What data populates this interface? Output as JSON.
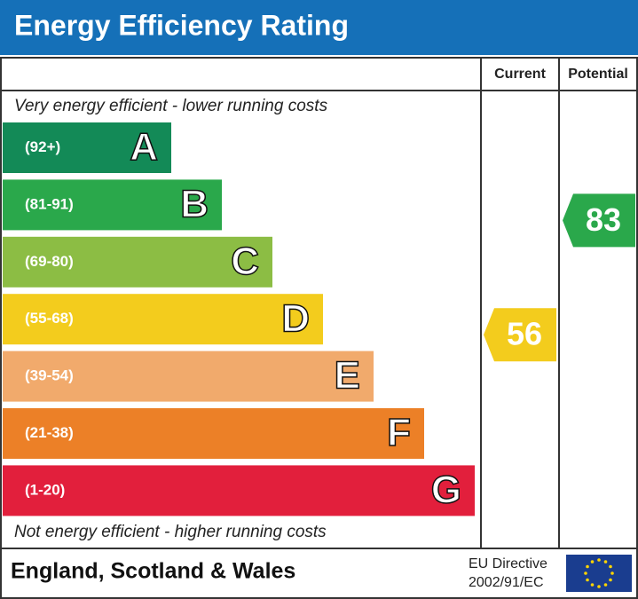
{
  "header": {
    "title": "Energy Efficiency Rating"
  },
  "columns": {
    "current": "Current",
    "potential": "Potential"
  },
  "top_note": "Very energy efficient - lower running costs",
  "bottom_note": "Not energy efficient - higher running costs",
  "bands": [
    {
      "range": "(92+)",
      "letter": "A",
      "color": "#138a57"
    },
    {
      "range": "(81-91)",
      "letter": "B",
      "color": "#2aa84b"
    },
    {
      "range": "(69-80)",
      "letter": "C",
      "color": "#8cbd44"
    },
    {
      "range": "(55-68)",
      "letter": "D",
      "color": "#f3cc1d"
    },
    {
      "range": "(39-54)",
      "letter": "E",
      "color": "#f1aa6c"
    },
    {
      "range": "(21-38)",
      "letter": "F",
      "color": "#ec8027"
    },
    {
      "range": "(1-20)",
      "letter": "G",
      "color": "#e21f3c"
    }
  ],
  "current": 56,
  "potential": 83,
  "footer": {
    "region": "England, Scotland & Wales",
    "directive_line1": "EU Directive",
    "directive_line2": "2002/91/EC"
  }
}
